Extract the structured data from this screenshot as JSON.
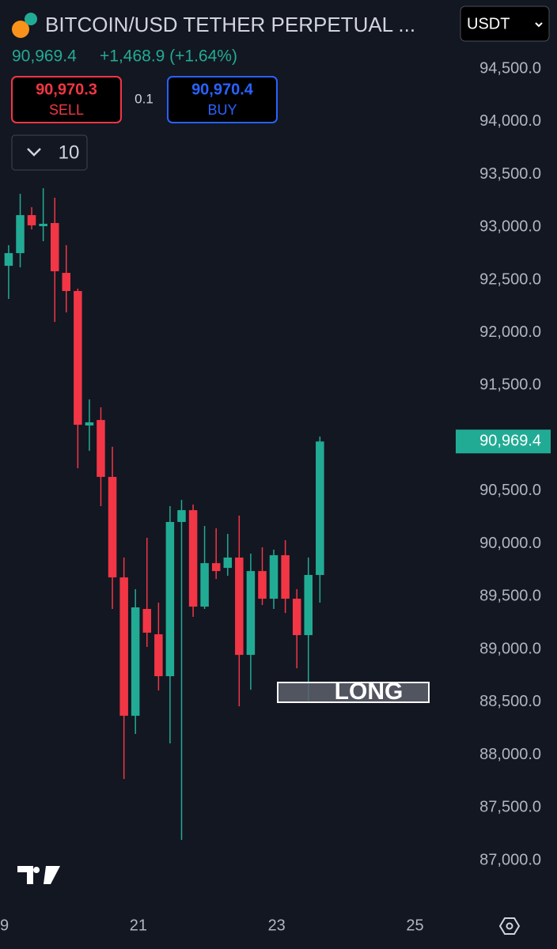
{
  "header": {
    "title": "BITCOIN/USD TETHER PERPETUAL ...",
    "currency": "USDT",
    "price": "90,969.4",
    "change": "+1,468.9 (+1.64%)",
    "sell_price": "90,970.3",
    "sell_label": "SELL",
    "spread": "0.1",
    "buy_price": "90,970.4",
    "buy_label": "BUY",
    "quantity": "10"
  },
  "chart_data": {
    "type": "candlestick",
    "annotation": "LONG",
    "up_color": "#22ab94",
    "down_color": "#f23645",
    "grid": false,
    "last_price": {
      "value": 90969.4,
      "label": "90,969.4"
    },
    "x": [
      19.125,
      19.292,
      19.458,
      19.625,
      19.792,
      19.958,
      20.125,
      20.292,
      20.458,
      20.625,
      20.792,
      20.958,
      21.125,
      21.292,
      21.458,
      21.625,
      21.792,
      21.958,
      22.125,
      22.292,
      22.458,
      22.625,
      22.792,
      22.958,
      23.125,
      23.292,
      23.458,
      23.625
    ],
    "open": [
      92634,
      92754,
      93114,
      93009,
      93039,
      92567,
      92395,
      91121,
      91173,
      90634,
      89682,
      88371,
      89383,
      89143,
      88746,
      90207,
      90319,
      89405,
      89817,
      89772,
      89870,
      88948,
      89742,
      89480,
      89892,
      89480,
      89135,
      89705
    ],
    "high": [
      92829,
      93316,
      93189,
      93369,
      93279,
      92829,
      92417,
      91368,
      91293,
      90919,
      89870,
      89570,
      90057,
      89443,
      90357,
      90416,
      90372,
      90169,
      90147,
      90094,
      90267,
      89907,
      89967,
      89945,
      90035,
      89570,
      89870,
      91016
    ],
    "low": [
      92320,
      92619,
      92979,
      92867,
      92102,
      92192,
      90716,
      90881,
      90357,
      89383,
      87772,
      88199,
      89023,
      88611,
      88109,
      87195,
      89308,
      89383,
      89667,
      89697,
      88461,
      88618,
      89420,
      89383,
      89345,
      88821,
      88499,
      89443
    ],
    "close": [
      92754,
      93114,
      93017,
      93032,
      92582,
      92395,
      91128,
      91151,
      90634,
      89682,
      88371,
      89398,
      89158,
      88746,
      90207,
      90319,
      89405,
      89817,
      89742,
      89870,
      88948,
      89742,
      89480,
      89892,
      89480,
      89135,
      89705,
      90969.4
    ],
    "xlim": [
      19,
      25.52
    ],
    "xticks": [
      {
        "value": 19,
        "label": "9"
      },
      21,
      23,
      25
    ],
    "ylim": [
      86611,
      95152
    ],
    "yticks": [
      {
        "value": 94500,
        "label": "94,500.0"
      },
      {
        "value": 94000,
        "label": "94,000.0"
      },
      {
        "value": 93500,
        "label": "93,500.0"
      },
      {
        "value": 93000,
        "label": "93,000.0"
      },
      {
        "value": 92500,
        "label": "92,500.0"
      },
      {
        "value": 92000,
        "label": "92,000.0"
      },
      {
        "value": 91500,
        "label": "91,500.0"
      },
      {
        "value": 91000,
        "label": "91,000.0"
      },
      {
        "value": 90500,
        "label": "90,500.0"
      },
      {
        "value": 90000,
        "label": "90,000.0"
      },
      {
        "value": 89500,
        "label": "89,500.0"
      },
      {
        "value": 89000,
        "label": "89,000.0"
      },
      {
        "value": 88500,
        "label": "88,500.0"
      },
      {
        "value": 88000,
        "label": "88,000.0"
      },
      {
        "value": 87500,
        "label": "87,500.0"
      },
      {
        "value": 87000,
        "label": "87,000.0"
      }
    ]
  }
}
